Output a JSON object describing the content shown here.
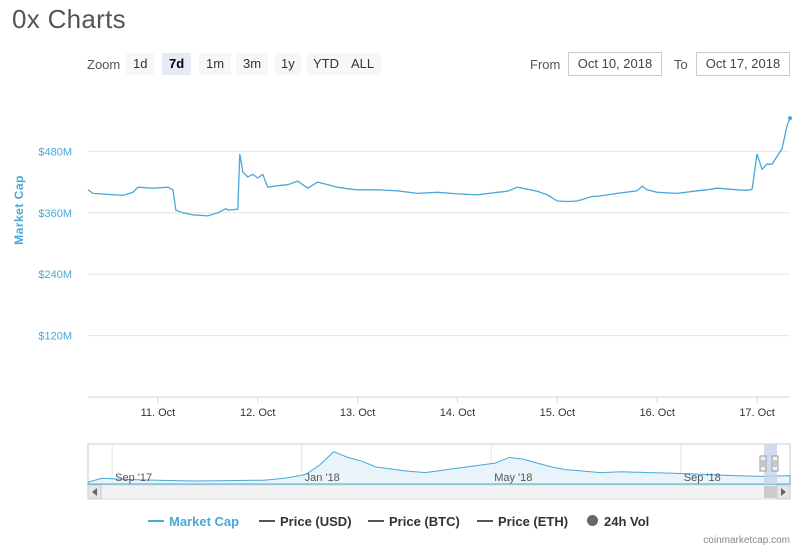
{
  "title": "0x Charts",
  "zoom": {
    "label": "Zoom",
    "buttons": [
      "1d",
      "7d",
      "1m",
      "3m",
      "1y",
      "YTD",
      "ALL"
    ],
    "active": "7d"
  },
  "range": {
    "from_label": "From",
    "from_value": "Oct 10, 2018",
    "to_label": "To",
    "to_value": "Oct 17, 2018"
  },
  "legend": [
    {
      "name": "Market Cap",
      "color": "#4aa8d8",
      "marker": "line"
    },
    {
      "name": "Price (USD)",
      "color": "#555555",
      "marker": "line"
    },
    {
      "name": "Price (BTC)",
      "color": "#555555",
      "marker": "line"
    },
    {
      "name": "Price (ETH)",
      "color": "#555555",
      "marker": "line"
    },
    {
      "name": "24h Vol",
      "color": "#666666",
      "marker": "dot"
    }
  ],
  "credits": "coinmarketcap.com",
  "colors": {
    "series": "#4aa8d8",
    "grid": "#e6e6e6",
    "navigator_fill": "#e8f3fa"
  },
  "chart_data": [
    {
      "type": "line",
      "ylabel": "Market Cap",
      "ylim": [
        0,
        600
      ],
      "xlim": [
        10.3,
        17.33
      ],
      "yticks": [
        {
          "v": 120,
          "label": "$120M"
        },
        {
          "v": 240,
          "label": "$240M"
        },
        {
          "v": 360,
          "label": "$360M"
        },
        {
          "v": 480,
          "label": "$480M"
        }
      ],
      "xticks": [
        {
          "v": 11,
          "label": "11. Oct"
        },
        {
          "v": 12,
          "label": "12. Oct"
        },
        {
          "v": 13,
          "label": "13. Oct"
        },
        {
          "v": 14,
          "label": "14. Oct"
        },
        {
          "v": 15,
          "label": "15. Oct"
        },
        {
          "v": 16,
          "label": "16. Oct"
        },
        {
          "v": 17,
          "label": "17. Oct"
        }
      ],
      "grid": true,
      "series": [
        {
          "name": "Market Cap",
          "x": [
            10.3,
            10.35,
            10.5,
            10.65,
            10.75,
            10.8,
            10.95,
            11.1,
            11.15,
            11.18,
            11.25,
            11.35,
            11.5,
            11.6,
            11.68,
            11.7,
            11.8,
            11.82,
            11.85,
            11.9,
            11.95,
            12.0,
            12.05,
            12.1,
            12.2,
            12.3,
            12.4,
            12.5,
            12.6,
            12.8,
            12.9,
            13.0,
            13.2,
            13.4,
            13.6,
            13.8,
            14.0,
            14.2,
            14.4,
            14.5,
            14.6,
            14.8,
            14.9,
            15.0,
            15.1,
            15.2,
            15.35,
            15.4,
            15.6,
            15.8,
            15.85,
            15.9,
            16.0,
            16.2,
            16.4,
            16.5,
            16.6,
            16.8,
            16.9,
            16.95,
            17.0,
            17.05,
            17.1,
            17.15,
            17.2,
            17.25,
            17.3,
            17.33
          ],
          "values": [
            405,
            398,
            396,
            394,
            400,
            410,
            408,
            410,
            405,
            365,
            360,
            356,
            354,
            360,
            368,
            365,
            367,
            475,
            440,
            430,
            435,
            428,
            435,
            410,
            413,
            415,
            422,
            408,
            420,
            410,
            407,
            405,
            405,
            403,
            398,
            400,
            397,
            395,
            400,
            402,
            410,
            402,
            395,
            383,
            382,
            383,
            392,
            392,
            398,
            403,
            412,
            405,
            400,
            398,
            403,
            405,
            408,
            405,
            404,
            406,
            475,
            445,
            455,
            455,
            470,
            485,
            530,
            545
          ]
        }
      ]
    },
    {
      "type": "area",
      "role": "navigator",
      "xticks": [
        {
          "v": 0.07,
          "label": "Sep '17"
        },
        {
          "v": 0.34,
          "label": "Jan '18"
        },
        {
          "v": 0.61,
          "label": "May '18"
        },
        {
          "v": 0.88,
          "label": "Sep '18"
        }
      ],
      "series": [
        {
          "name": "Market Cap",
          "x": [
            0.0,
            0.02,
            0.05,
            0.1,
            0.15,
            0.2,
            0.25,
            0.28,
            0.31,
            0.33,
            0.35,
            0.37,
            0.39,
            0.41,
            0.43,
            0.45,
            0.48,
            0.5,
            0.52,
            0.54,
            0.56,
            0.58,
            0.6,
            0.62,
            0.64,
            0.66,
            0.68,
            0.7,
            0.73,
            0.76,
            0.8,
            0.84,
            0.88,
            0.92,
            0.96,
            1.0
          ],
          "values": [
            0.05,
            0.15,
            0.12,
            0.1,
            0.08,
            0.09,
            0.1,
            0.15,
            0.25,
            0.5,
            0.85,
            0.7,
            0.6,
            0.45,
            0.4,
            0.35,
            0.3,
            0.35,
            0.4,
            0.45,
            0.5,
            0.55,
            0.7,
            0.65,
            0.55,
            0.45,
            0.38,
            0.35,
            0.3,
            0.32,
            0.3,
            0.28,
            0.25,
            0.22,
            0.2,
            0.22
          ]
        }
      ]
    }
  ]
}
